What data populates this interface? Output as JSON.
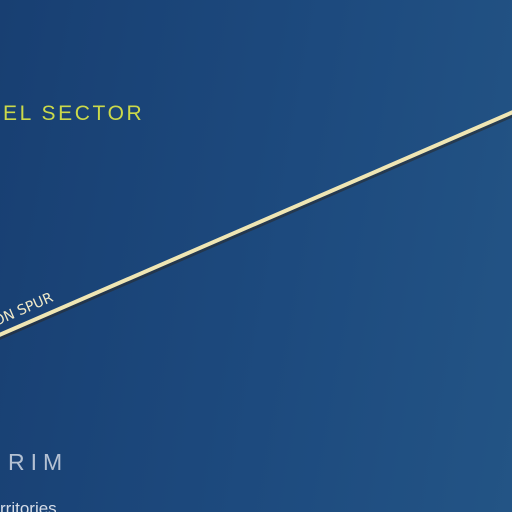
{
  "map": {
    "background_colors": [
      "#183f72",
      "#235485"
    ],
    "regions": {
      "sector": "EL SECTOR",
      "rim": "RIM",
      "territories": "rritories"
    },
    "route": {
      "label": "ON SPUR",
      "line_color": "#efe6b4",
      "outline_color": "#2a2a2a"
    },
    "label_colors": {
      "sector": "#cbd94a",
      "rim": "#b4c1d3"
    }
  }
}
